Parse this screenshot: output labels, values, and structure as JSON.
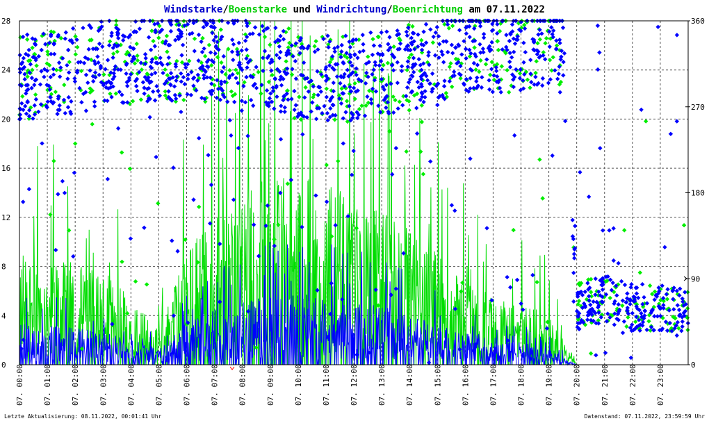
{
  "chart_data": {
    "type": "line",
    "title_parts": [
      {
        "text": "Windstarke",
        "color": "#0000cc"
      },
      {
        "text": "/",
        "color": "#000000"
      },
      {
        "text": "Boenstarke",
        "color": "#00cc00"
      },
      {
        "text": " und ",
        "color": "#000000"
      },
      {
        "text": "Windrichtung",
        "color": "#0000cc"
      },
      {
        "text": "/",
        "color": "#000000"
      },
      {
        "text": "Boenrichtung",
        "color": "#00cc00"
      },
      {
        "text": " am 07.11.2022",
        "color": "#000000"
      }
    ],
    "x_tick_labels": [
      "07. 00:00",
      "07. 01:00",
      "07. 02:00",
      "07. 03:00",
      "07. 04:00",
      "07. 05:00",
      "07. 06:00",
      "07. 07:00",
      "07. 08:00",
      "07. 09:00",
      "07. 10:00",
      "07. 11:00",
      "07. 12:00",
      "07. 13:00",
      "07. 14:00",
      "07. 15:00",
      "07. 16:00",
      "07. 17:00",
      "07. 18:00",
      "07. 19:00",
      "07. 20:00",
      "07. 21:00",
      "07. 22:00",
      "07. 23:00"
    ],
    "x_range_hours": [
      0,
      24
    ],
    "y_left": {
      "min": 0,
      "max": 28,
      "ticks": [
        0,
        4,
        8,
        12,
        16,
        20,
        24,
        28
      ]
    },
    "y_right": {
      "min": 0,
      "max": 360,
      "ticks": [
        0,
        90,
        180,
        270,
        360
      ]
    },
    "grid": true,
    "series": [
      {
        "name": "Windstarke",
        "axis": "left",
        "style": "line",
        "color": "#0000ff",
        "profile_hours": [
          0,
          1,
          2,
          3,
          4,
          5,
          6,
          7,
          8,
          9,
          10,
          11,
          12,
          13,
          14,
          15,
          16,
          17,
          18,
          19,
          19.5,
          20,
          24
        ],
        "profile_values": [
          2.5,
          2.3,
          2.2,
          2.0,
          1.5,
          1.0,
          2.5,
          3.2,
          3.8,
          4.0,
          4.2,
          4.0,
          3.8,
          3.5,
          3.0,
          2.5,
          2.0,
          1.6,
          1.3,
          1.0,
          0.5,
          0,
          0
        ]
      },
      {
        "name": "Boenstarke",
        "axis": "left",
        "style": "line",
        "color": "#00dd00",
        "profile_hours": [
          0,
          1,
          2,
          3,
          4,
          5,
          6,
          7,
          8,
          9,
          10,
          11,
          12,
          13,
          14,
          15,
          16,
          17,
          18,
          19,
          19.5,
          20,
          24
        ],
        "profile_values": [
          7,
          6,
          6,
          5.5,
          4,
          2,
          7,
          9,
          10,
          11,
          11,
          10.5,
          10,
          9,
          8,
          6.5,
          5,
          4,
          3.5,
          3,
          1.5,
          0,
          0
        ]
      },
      {
        "name": "Windrichtung",
        "axis": "right",
        "style": "points",
        "color": "#0000ff",
        "profile_hours": [
          0,
          2,
          4,
          6,
          8,
          10,
          12,
          14,
          16,
          18,
          19.5,
          20,
          21,
          22,
          23,
          24
        ],
        "profile_values": [
          300,
          310,
          320,
          320,
          320,
          300,
          300,
          310,
          330,
          330,
          340,
          60,
          70,
          60,
          60,
          60
        ]
      },
      {
        "name": "Boenrichtung",
        "axis": "right",
        "style": "points",
        "color": "#00ee00",
        "profile_hours": [
          0,
          2,
          4,
          6,
          8,
          10,
          12,
          14,
          16,
          18,
          19.5,
          20,
          21,
          22,
          23,
          24
        ],
        "profile_values": [
          300,
          310,
          320,
          320,
          320,
          300,
          300,
          310,
          330,
          330,
          340,
          60,
          70,
          60,
          60,
          60
        ]
      }
    ]
  },
  "footer": {
    "left": "Letzte Aktualisierung: 08.11.2022, 00:01:41 Uhr",
    "right": "Datenstand: 07.11.2022, 23:59:59 Uhr"
  },
  "colors": {
    "plot_border": "#000000",
    "grid": "#000000",
    "marker": "#ff0000"
  }
}
